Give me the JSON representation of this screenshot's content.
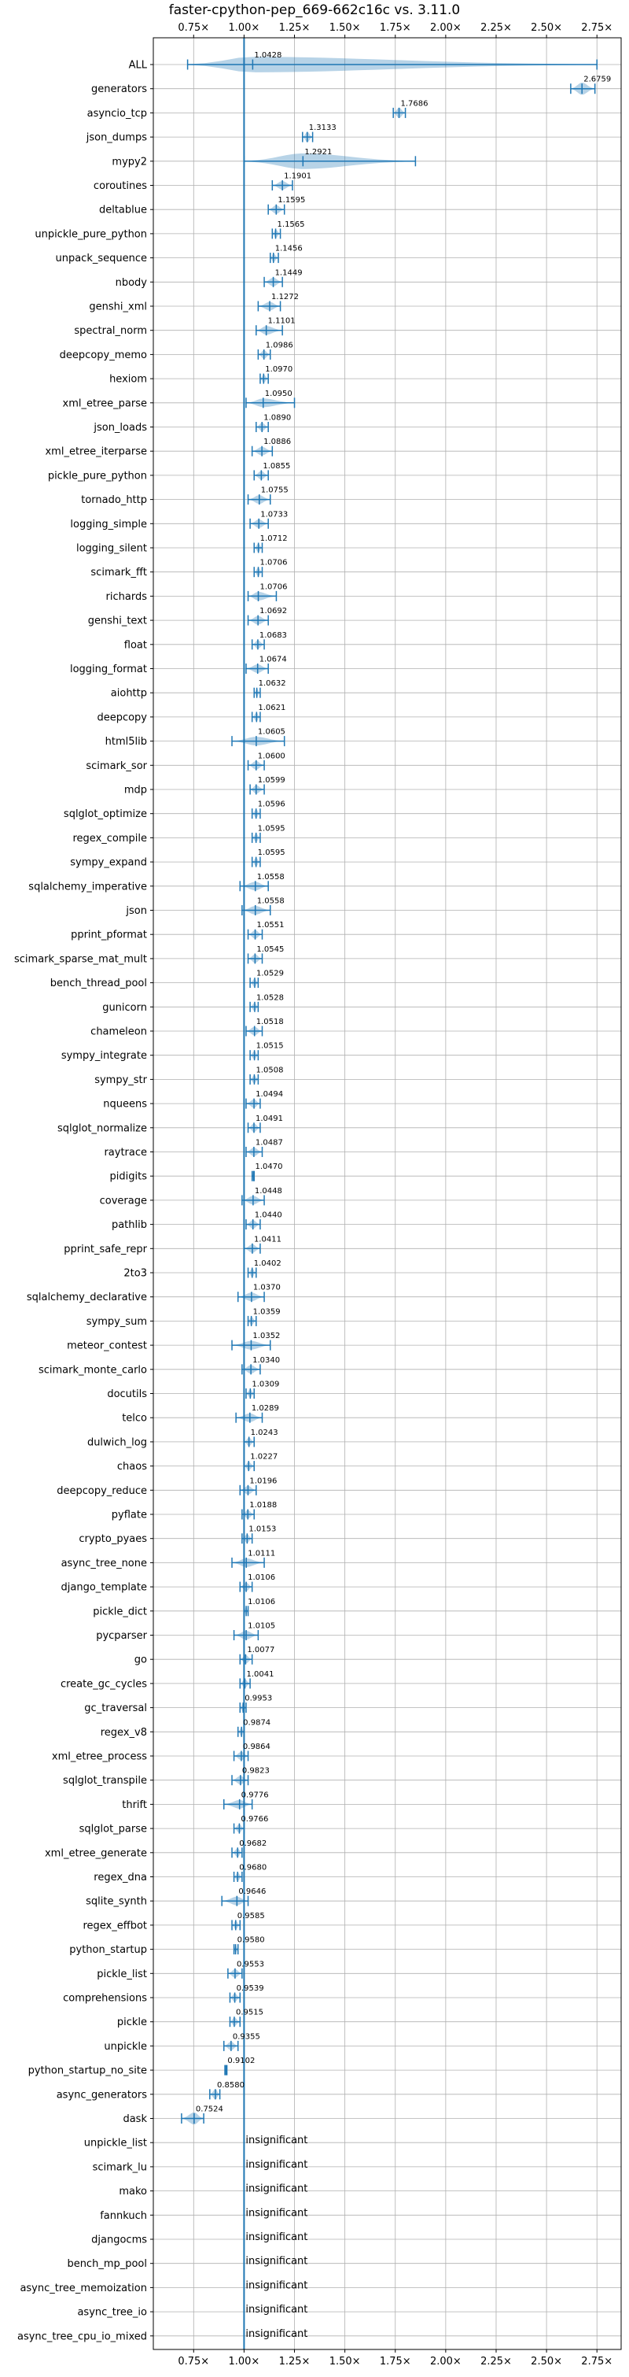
{
  "chart_data": {
    "type": "violin",
    "title": "faster-cpython-pep_669-662c16c vs. 3.11.0",
    "xlim": [
      0.55,
      2.87
    ],
    "x_ticks": [
      0.75,
      1.0,
      1.25,
      1.5,
      1.75,
      2.0,
      2.25,
      2.5,
      2.75
    ],
    "x_tick_labels": [
      "0.75×",
      "1.00×",
      "1.25×",
      "1.50×",
      "1.75×",
      "2.00×",
      "2.25×",
      "2.50×",
      "2.75×"
    ],
    "reference_line": 1.0,
    "grid": true,
    "color": "#1f77b4",
    "insignificant_text": "insignificant",
    "benchmarks": [
      {
        "name": "ALL",
        "median": 1.0428,
        "label": "1.0428",
        "lo": 0.72,
        "hi": 2.75,
        "width": 0.9
      },
      {
        "name": "generators",
        "median": 2.6759,
        "label": "2.6759",
        "lo": 2.62,
        "hi": 2.74,
        "width": 0.7
      },
      {
        "name": "asyncio_tcp",
        "median": 1.7686,
        "label": "1.7686",
        "lo": 1.74,
        "hi": 1.8,
        "width": 0.6
      },
      {
        "name": "json_dumps",
        "median": 1.3133,
        "label": "1.3133",
        "lo": 1.29,
        "hi": 1.34,
        "width": 0.6
      },
      {
        "name": "mypy2",
        "median": 1.2921,
        "label": "1.2921",
        "lo": 1.0,
        "hi": 1.85,
        "width": 0.9
      },
      {
        "name": "coroutines",
        "median": 1.1901,
        "label": "1.1901",
        "lo": 1.14,
        "hi": 1.24,
        "width": 0.5
      },
      {
        "name": "deltablue",
        "median": 1.1595,
        "label": "1.1595",
        "lo": 1.12,
        "hi": 1.2,
        "width": 0.5
      },
      {
        "name": "unpickle_pure_python",
        "median": 1.1565,
        "label": "1.1565",
        "lo": 1.14,
        "hi": 1.18,
        "width": 0.5
      },
      {
        "name": "unpack_sequence",
        "median": 1.1456,
        "label": "1.1456",
        "lo": 1.13,
        "hi": 1.17,
        "width": 0.5
      },
      {
        "name": "nbody",
        "median": 1.1449,
        "label": "1.1449",
        "lo": 1.1,
        "hi": 1.19,
        "width": 0.5
      },
      {
        "name": "genshi_xml",
        "median": 1.1272,
        "label": "1.1272",
        "lo": 1.07,
        "hi": 1.18,
        "width": 0.5
      },
      {
        "name": "spectral_norm",
        "median": 1.1101,
        "label": "1.1101",
        "lo": 1.06,
        "hi": 1.19,
        "width": 0.5
      },
      {
        "name": "deepcopy_memo",
        "median": 1.0986,
        "label": "1.0986",
        "lo": 1.07,
        "hi": 1.13,
        "width": 0.5
      },
      {
        "name": "hexiom",
        "median": 1.097,
        "label": "1.0970",
        "lo": 1.08,
        "hi": 1.12,
        "width": 0.5
      },
      {
        "name": "xml_etree_parse",
        "median": 1.095,
        "label": "1.0950",
        "lo": 1.01,
        "hi": 1.25,
        "width": 0.5
      },
      {
        "name": "json_loads",
        "median": 1.089,
        "label": "1.0890",
        "lo": 1.06,
        "hi": 1.12,
        "width": 0.5
      },
      {
        "name": "xml_etree_iterparse",
        "median": 1.0886,
        "label": "1.0886",
        "lo": 1.04,
        "hi": 1.14,
        "width": 0.5
      },
      {
        "name": "pickle_pure_python",
        "median": 1.0855,
        "label": "1.0855",
        "lo": 1.05,
        "hi": 1.12,
        "width": 0.5
      },
      {
        "name": "tornado_http",
        "median": 1.0755,
        "label": "1.0755",
        "lo": 1.02,
        "hi": 1.13,
        "width": 0.5
      },
      {
        "name": "logging_simple",
        "median": 1.0733,
        "label": "1.0733",
        "lo": 1.03,
        "hi": 1.12,
        "width": 0.5
      },
      {
        "name": "logging_silent",
        "median": 1.0712,
        "label": "1.0712",
        "lo": 1.05,
        "hi": 1.09,
        "width": 0.5
      },
      {
        "name": "scimark_fft",
        "median": 1.0706,
        "label": "1.0706",
        "lo": 1.05,
        "hi": 1.09,
        "width": 0.5
      },
      {
        "name": "richards",
        "median": 1.0706,
        "label": "1.0706",
        "lo": 1.02,
        "hi": 1.16,
        "width": 0.5
      },
      {
        "name": "genshi_text",
        "median": 1.0692,
        "label": "1.0692",
        "lo": 1.02,
        "hi": 1.12,
        "width": 0.5
      },
      {
        "name": "float",
        "median": 1.0683,
        "label": "1.0683",
        "lo": 1.04,
        "hi": 1.1,
        "width": 0.5
      },
      {
        "name": "logging_format",
        "median": 1.0674,
        "label": "1.0674",
        "lo": 1.01,
        "hi": 1.12,
        "width": 0.5
      },
      {
        "name": "aiohttp",
        "median": 1.0632,
        "label": "1.0632",
        "lo": 1.05,
        "hi": 1.08,
        "width": 0.5
      },
      {
        "name": "deepcopy",
        "median": 1.0621,
        "label": "1.0621",
        "lo": 1.04,
        "hi": 1.08,
        "width": 0.5
      },
      {
        "name": "html5lib",
        "median": 1.0605,
        "label": "1.0605",
        "lo": 0.94,
        "hi": 1.2,
        "width": 0.5
      },
      {
        "name": "scimark_sor",
        "median": 1.06,
        "label": "1.0600",
        "lo": 1.02,
        "hi": 1.1,
        "width": 0.5
      },
      {
        "name": "mdp",
        "median": 1.0599,
        "label": "1.0599",
        "lo": 1.03,
        "hi": 1.1,
        "width": 0.5
      },
      {
        "name": "sqlglot_optimize",
        "median": 1.0596,
        "label": "1.0596",
        "lo": 1.04,
        "hi": 1.08,
        "width": 0.5
      },
      {
        "name": "regex_compile",
        "median": 1.0595,
        "label": "1.0595",
        "lo": 1.04,
        "hi": 1.08,
        "width": 0.5
      },
      {
        "name": "sympy_expand",
        "median": 1.0595,
        "label": "1.0595",
        "lo": 1.04,
        "hi": 1.08,
        "width": 0.5
      },
      {
        "name": "sqlalchemy_imperative",
        "median": 1.0558,
        "label": "1.0558",
        "lo": 0.98,
        "hi": 1.12,
        "width": 0.5
      },
      {
        "name": "json",
        "median": 1.0558,
        "label": "1.0558",
        "lo": 0.99,
        "hi": 1.13,
        "width": 0.5
      },
      {
        "name": "pprint_pformat",
        "median": 1.0551,
        "label": "1.0551",
        "lo": 1.02,
        "hi": 1.09,
        "width": 0.5
      },
      {
        "name": "scimark_sparse_mat_mult",
        "median": 1.0545,
        "label": "1.0545",
        "lo": 1.02,
        "hi": 1.09,
        "width": 0.5
      },
      {
        "name": "bench_thread_pool",
        "median": 1.0529,
        "label": "1.0529",
        "lo": 1.03,
        "hi": 1.07,
        "width": 0.5
      },
      {
        "name": "gunicorn",
        "median": 1.0528,
        "label": "1.0528",
        "lo": 1.03,
        "hi": 1.07,
        "width": 0.5
      },
      {
        "name": "chameleon",
        "median": 1.0518,
        "label": "1.0518",
        "lo": 1.01,
        "hi": 1.09,
        "width": 0.5
      },
      {
        "name": "sympy_integrate",
        "median": 1.0515,
        "label": "1.0515",
        "lo": 1.03,
        "hi": 1.07,
        "width": 0.5
      },
      {
        "name": "sympy_str",
        "median": 1.0508,
        "label": "1.0508",
        "lo": 1.03,
        "hi": 1.07,
        "width": 0.5
      },
      {
        "name": "nqueens",
        "median": 1.0494,
        "label": "1.0494",
        "lo": 1.01,
        "hi": 1.08,
        "width": 0.5
      },
      {
        "name": "sqlglot_normalize",
        "median": 1.0491,
        "label": "1.0491",
        "lo": 1.02,
        "hi": 1.08,
        "width": 0.5
      },
      {
        "name": "raytrace",
        "median": 1.0487,
        "label": "1.0487",
        "lo": 1.01,
        "hi": 1.09,
        "width": 0.5
      },
      {
        "name": "pidigits",
        "median": 1.047,
        "label": "1.0470",
        "lo": 1.04,
        "hi": 1.05,
        "width": 0.5
      },
      {
        "name": "coverage",
        "median": 1.0448,
        "label": "1.0448",
        "lo": 0.99,
        "hi": 1.1,
        "width": 0.5
      },
      {
        "name": "pathlib",
        "median": 1.044,
        "label": "1.0440",
        "lo": 1.01,
        "hi": 1.08,
        "width": 0.5
      },
      {
        "name": "pprint_safe_repr",
        "median": 1.0411,
        "label": "1.0411",
        "lo": 1.0,
        "hi": 1.08,
        "width": 0.5
      },
      {
        "name": "2to3",
        "median": 1.0402,
        "label": "1.0402",
        "lo": 1.02,
        "hi": 1.06,
        "width": 0.5
      },
      {
        "name": "sqlalchemy_declarative",
        "median": 1.037,
        "label": "1.0370",
        "lo": 0.97,
        "hi": 1.1,
        "width": 0.5
      },
      {
        "name": "sympy_sum",
        "median": 1.0359,
        "label": "1.0359",
        "lo": 1.02,
        "hi": 1.06,
        "width": 0.5
      },
      {
        "name": "meteor_contest",
        "median": 1.0352,
        "label": "1.0352",
        "lo": 0.94,
        "hi": 1.13,
        "width": 0.5
      },
      {
        "name": "scimark_monte_carlo",
        "median": 1.034,
        "label": "1.0340",
        "lo": 0.99,
        "hi": 1.08,
        "width": 0.5
      },
      {
        "name": "docutils",
        "median": 1.0309,
        "label": "1.0309",
        "lo": 1.01,
        "hi": 1.05,
        "width": 0.5
      },
      {
        "name": "telco",
        "median": 1.0289,
        "label": "1.0289",
        "lo": 0.96,
        "hi": 1.09,
        "width": 0.5
      },
      {
        "name": "dulwich_log",
        "median": 1.0243,
        "label": "1.0243",
        "lo": 1.0,
        "hi": 1.05,
        "width": 0.5
      },
      {
        "name": "chaos",
        "median": 1.0227,
        "label": "1.0227",
        "lo": 1.0,
        "hi": 1.05,
        "width": 0.5
      },
      {
        "name": "deepcopy_reduce",
        "median": 1.0196,
        "label": "1.0196",
        "lo": 0.98,
        "hi": 1.06,
        "width": 0.5
      },
      {
        "name": "pyflate",
        "median": 1.0188,
        "label": "1.0188",
        "lo": 0.99,
        "hi": 1.05,
        "width": 0.5
      },
      {
        "name": "crypto_pyaes",
        "median": 1.0153,
        "label": "1.0153",
        "lo": 0.99,
        "hi": 1.04,
        "width": 0.5
      },
      {
        "name": "async_tree_none",
        "median": 1.0111,
        "label": "1.0111",
        "lo": 0.94,
        "hi": 1.1,
        "width": 0.5
      },
      {
        "name": "django_template",
        "median": 1.0106,
        "label": "1.0106",
        "lo": 0.98,
        "hi": 1.04,
        "width": 0.5
      },
      {
        "name": "pickle_dict",
        "median": 1.0106,
        "label": "1.0106",
        "lo": 1.0,
        "hi": 1.02,
        "width": 0.5
      },
      {
        "name": "pycparser",
        "median": 1.0105,
        "label": "1.0105",
        "lo": 0.95,
        "hi": 1.07,
        "width": 0.5
      },
      {
        "name": "go",
        "median": 1.0077,
        "label": "1.0077",
        "lo": 0.98,
        "hi": 1.04,
        "width": 0.5
      },
      {
        "name": "create_gc_cycles",
        "median": 1.0041,
        "label": "1.0041",
        "lo": 0.98,
        "hi": 1.03,
        "width": 0.5
      },
      {
        "name": "gc_traversal",
        "median": 0.9953,
        "label": "0.9953",
        "lo": 0.98,
        "hi": 1.01,
        "width": 0.5
      },
      {
        "name": "regex_v8",
        "median": 0.9874,
        "label": "0.9874",
        "lo": 0.97,
        "hi": 1.0,
        "width": 0.5
      },
      {
        "name": "xml_etree_process",
        "median": 0.9864,
        "label": "0.9864",
        "lo": 0.95,
        "hi": 1.02,
        "width": 0.5
      },
      {
        "name": "sqlglot_transpile",
        "median": 0.9823,
        "label": "0.9823",
        "lo": 0.94,
        "hi": 1.02,
        "width": 0.5
      },
      {
        "name": "thrift",
        "median": 0.9776,
        "label": "0.9776",
        "lo": 0.9,
        "hi": 1.04,
        "width": 0.5
      },
      {
        "name": "sqlglot_parse",
        "median": 0.9766,
        "label": "0.9766",
        "lo": 0.95,
        "hi": 1.0,
        "width": 0.5
      },
      {
        "name": "xml_etree_generate",
        "median": 0.9682,
        "label": "0.9682",
        "lo": 0.94,
        "hi": 0.99,
        "width": 0.5
      },
      {
        "name": "regex_dna",
        "median": 0.968,
        "label": "0.9680",
        "lo": 0.95,
        "hi": 0.99,
        "width": 0.5
      },
      {
        "name": "sqlite_synth",
        "median": 0.9646,
        "label": "0.9646",
        "lo": 0.89,
        "hi": 1.02,
        "width": 0.5
      },
      {
        "name": "regex_effbot",
        "median": 0.9585,
        "label": "0.9585",
        "lo": 0.94,
        "hi": 0.98,
        "width": 0.5
      },
      {
        "name": "python_startup",
        "median": 0.958,
        "label": "0.9580",
        "lo": 0.95,
        "hi": 0.97,
        "width": 0.5
      },
      {
        "name": "pickle_list",
        "median": 0.9553,
        "label": "0.9553",
        "lo": 0.92,
        "hi": 0.99,
        "width": 0.5
      },
      {
        "name": "comprehensions",
        "median": 0.9539,
        "label": "0.9539",
        "lo": 0.93,
        "hi": 0.98,
        "width": 0.5
      },
      {
        "name": "pickle",
        "median": 0.9515,
        "label": "0.9515",
        "lo": 0.93,
        "hi": 0.98,
        "width": 0.5
      },
      {
        "name": "unpickle",
        "median": 0.9355,
        "label": "0.9355",
        "lo": 0.9,
        "hi": 0.97,
        "width": 0.5
      },
      {
        "name": "python_startup_no_site",
        "median": 0.9102,
        "label": "0.9102",
        "lo": 0.905,
        "hi": 0.915,
        "width": 0.5
      },
      {
        "name": "async_generators",
        "median": 0.858,
        "label": "0.8580",
        "lo": 0.83,
        "hi": 0.88,
        "width": 0.6
      },
      {
        "name": "dask",
        "median": 0.7524,
        "label": "0.7524",
        "lo": 0.69,
        "hi": 0.8,
        "width": 0.7
      },
      {
        "name": "unpickle_list",
        "insignificant": true
      },
      {
        "name": "scimark_lu",
        "insignificant": true
      },
      {
        "name": "mako",
        "insignificant": true
      },
      {
        "name": "fannkuch",
        "insignificant": true
      },
      {
        "name": "djangocms",
        "insignificant": true
      },
      {
        "name": "bench_mp_pool",
        "insignificant": true
      },
      {
        "name": "async_tree_memoization",
        "insignificant": true
      },
      {
        "name": "async_tree_io",
        "insignificant": true
      },
      {
        "name": "async_tree_cpu_io_mixed",
        "insignificant": true
      }
    ]
  }
}
